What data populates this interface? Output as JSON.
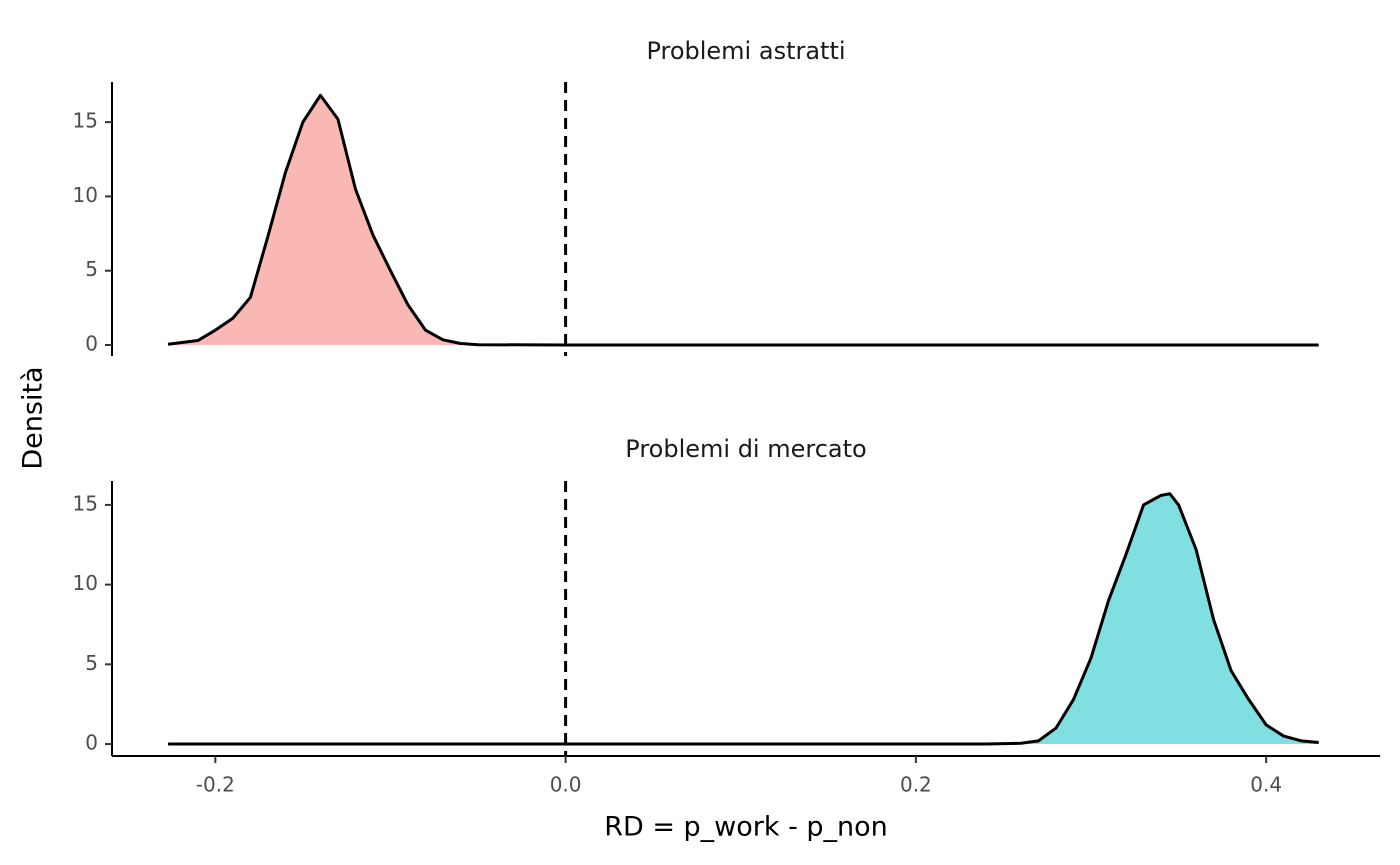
{
  "chart_data": [
    {
      "type": "density",
      "title": "Problemi astratti",
      "ylabel": "Densità",
      "x": [
        -0.227,
        -0.21,
        -0.2,
        -0.19,
        -0.18,
        -0.17,
        -0.16,
        -0.15,
        -0.14,
        -0.13,
        -0.12,
        -0.11,
        -0.1,
        -0.09,
        -0.08,
        -0.07,
        -0.06,
        -0.05,
        0.0,
        0.43
      ],
      "values": [
        0.05,
        0.3,
        1.0,
        1.8,
        3.2,
        7.3,
        11.6,
        15.0,
        16.8,
        15.2,
        10.5,
        7.4,
        5.0,
        2.7,
        1.0,
        0.35,
        0.1,
        0.02,
        0,
        0
      ],
      "color": "#fab8b4",
      "vline": 0,
      "xlim": [
        -0.259,
        0.465
      ],
      "ylim": [
        -0.74,
        17.7
      ],
      "yticks": [
        0,
        5,
        10,
        15
      ]
    },
    {
      "type": "density",
      "title": "Problemi di mercato",
      "xlabel": "RD = p_work - p_non",
      "x": [
        -0.227,
        0.24,
        0.26,
        0.27,
        0.28,
        0.29,
        0.3,
        0.31,
        0.32,
        0.33,
        0.34,
        0.345,
        0.35,
        0.36,
        0.37,
        0.38,
        0.39,
        0.4,
        0.41,
        0.42,
        0.43
      ],
      "values": [
        0,
        0,
        0.05,
        0.2,
        1.0,
        2.8,
        5.4,
        9.0,
        11.9,
        15.0,
        15.6,
        15.7,
        15.0,
        12.2,
        7.8,
        4.6,
        2.8,
        1.2,
        0.5,
        0.2,
        0.1
      ],
      "color": "#80dfe0",
      "vline": 0,
      "xlim": [
        -0.259,
        0.465
      ],
      "ylim": [
        -0.75,
        16.5
      ],
      "yticks": [
        0,
        5,
        10,
        15
      ],
      "xticks": [
        -0.2,
        {
          "value": 0,
          "label": "0.0"
        },
        0.2,
        0.4
      ]
    }
  ]
}
